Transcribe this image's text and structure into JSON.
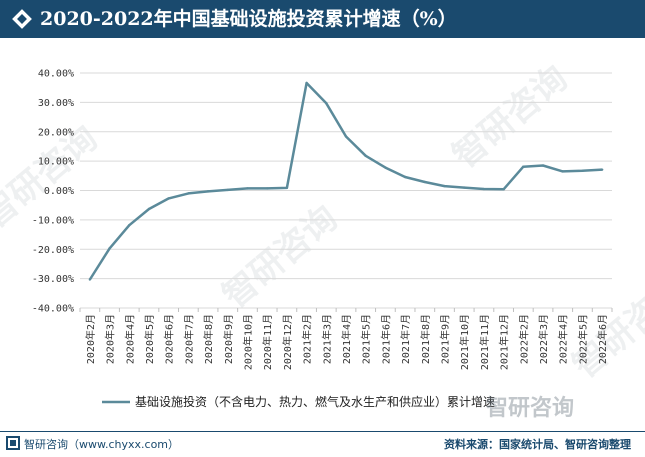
{
  "title": "2020-2022年中国基础设施投资累计增速（%）",
  "watermark_text": "智研咨询",
  "corner_brand": "智研咨询",
  "footer": {
    "left": "智研咨询（www.chyxx.com）",
    "right": "资料来源：国家统计局、智研咨询整理"
  },
  "colors": {
    "title_bg": "#1a4a6e",
    "line": "#5b8a9a",
    "grid": "#d9d9d9"
  },
  "chart_data": {
    "type": "line",
    "title": "2020-2022年中国基础设施投资累计增速（%）",
    "xlabel": "",
    "ylabel": "",
    "ylim": [
      -40,
      40
    ],
    "yticks": [
      40,
      30,
      20,
      10,
      0,
      -10,
      -20,
      -30,
      -40
    ],
    "ytick_labels": [
      "40.00%",
      "30.00%",
      "20.00%",
      "10.00%",
      "0.00%",
      "-10.00%",
      "-20.00%",
      "-30.00%",
      "-40.00%"
    ],
    "grid": true,
    "legend_position": "bottom",
    "categories": [
      "2020年2月",
      "2020年3月",
      "2020年4月",
      "2020年5月",
      "2020年6月",
      "2020年7月",
      "2020年8月",
      "2020年9月",
      "2020年10月",
      "2020年11月",
      "2020年12月",
      "2021年2月",
      "2021年3月",
      "2021年4月",
      "2021年5月",
      "2021年6月",
      "2021年7月",
      "2021年8月",
      "2021年9月",
      "2021年10月",
      "2021年11月",
      "2021年12月",
      "2022年2月",
      "2022年3月",
      "2022年4月",
      "2022年5月",
      "2022年6月"
    ],
    "series": [
      {
        "name": "基础设施投资（不含电力、热力、燃气及水生产和供应业）累计增速",
        "values": [
          -30.3,
          -19.7,
          -11.8,
          -6.3,
          -2.7,
          -1.0,
          -0.3,
          0.2,
          0.7,
          0.7,
          0.9,
          36.6,
          29.7,
          18.4,
          11.8,
          7.8,
          4.6,
          2.9,
          1.5,
          1.0,
          0.5,
          0.4,
          8.1,
          8.5,
          6.5,
          6.7,
          7.1
        ]
      }
    ]
  }
}
